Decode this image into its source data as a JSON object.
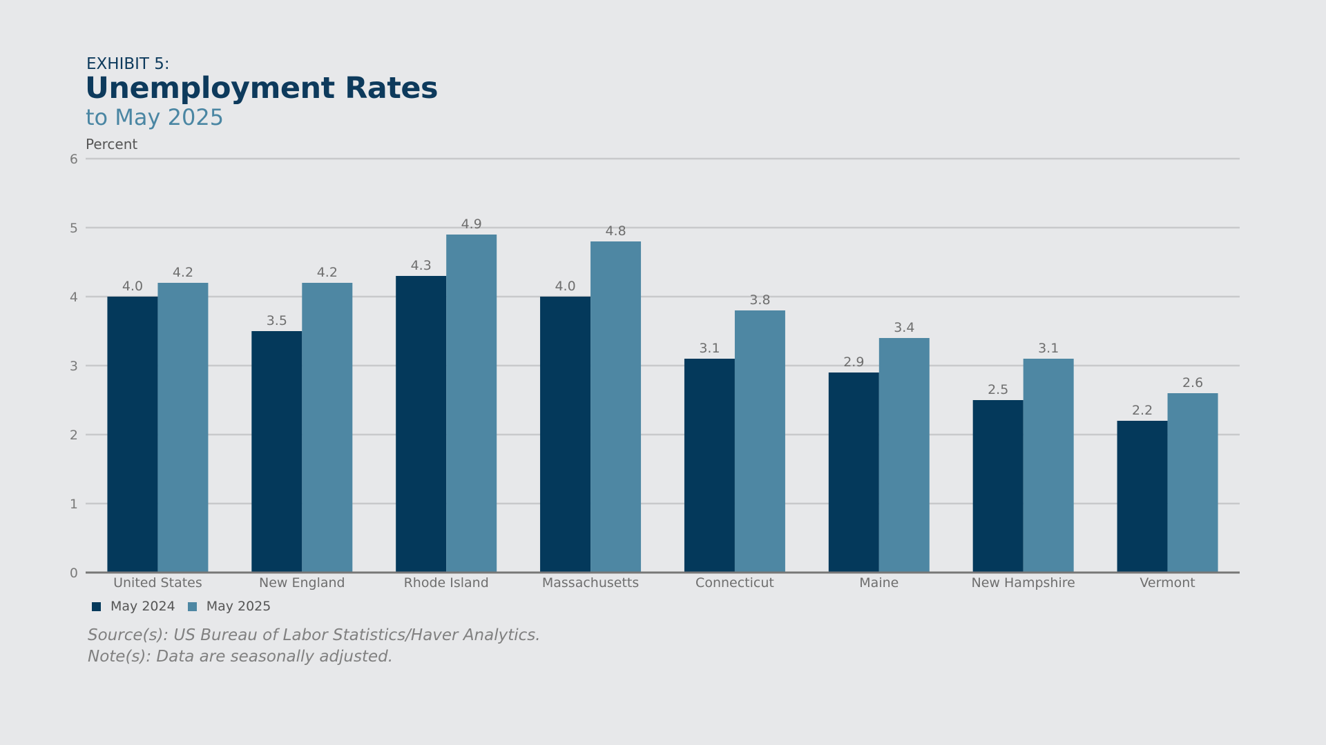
{
  "exhibit_label": "EXHIBIT 5:",
  "colors": {
    "background": "#e7e8ea",
    "series_1": "#04395b",
    "series_2": "#4e87a3",
    "gridline": "#c8c9cb",
    "axis": "#777777"
  },
  "notes": {
    "source": "Source(s): US Bureau of Labor Statistics/Haver Analytics.",
    "note": "Note(s): Data are seasonally adjusted."
  },
  "chart_data": {
    "type": "bar",
    "title": "Unemployment Rates",
    "subtitle": "to May 2025",
    "ylabel": "Percent",
    "xlabel": "",
    "ylim": [
      0,
      6
    ],
    "yticks": [
      0,
      1,
      2,
      3,
      4,
      5,
      6
    ],
    "grid": true,
    "legend_position": "bottom-left",
    "data_labels": true,
    "categories": [
      "United States",
      "New England",
      "Rhode Island",
      "Massachusetts",
      "Connecticut",
      "Maine",
      "New Hampshire",
      "Vermont"
    ],
    "series": [
      {
        "name": "May 2024",
        "values": [
          4.0,
          3.5,
          4.3,
          4.0,
          3.1,
          2.9,
          2.5,
          2.2
        ]
      },
      {
        "name": "May 2025",
        "values": [
          4.2,
          4.2,
          4.9,
          4.8,
          3.8,
          3.4,
          3.1,
          2.6
        ]
      }
    ]
  }
}
